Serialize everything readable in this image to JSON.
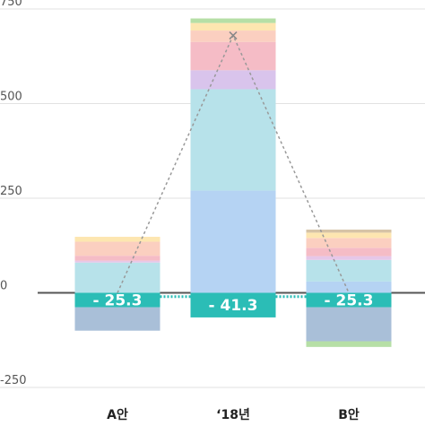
{
  "chart_data": {
    "type": "bar",
    "stacked": true,
    "categories": [
      "A안",
      "‘18년",
      "B안"
    ],
    "ylim": [
      -250,
      750
    ],
    "yticks": [
      750,
      500,
      250,
      0,
      -250
    ],
    "grid": true,
    "legend": "none",
    "highlight_color": "#2bbdb6",
    "line_color": "#999999",
    "bars": [
      {
        "category": "A안",
        "positive": [
          {
            "value": 80,
            "color": "#b7e2ea"
          },
          {
            "value": 5,
            "color": "#e6c7e8"
          },
          {
            "value": 13,
            "color": "#f5bcc6"
          },
          {
            "value": 37,
            "color": "#fbcfc0"
          },
          {
            "value": 13,
            "color": "#fde6b0"
          }
        ],
        "negative": [
          {
            "value": -38,
            "color": "#2bbdb6"
          },
          {
            "value": -62,
            "color": "#a9bfd8"
          }
        ],
        "highlight_value": -25.3,
        "highlight_label": "- 25.3"
      },
      {
        "category": "‘18년",
        "positive": [
          {
            "value": 270,
            "color": "#b5d3f3"
          },
          {
            "value": 268,
            "color": "#b7e2ea"
          },
          {
            "value": 50,
            "color": "#d9c4ec"
          },
          {
            "value": 75,
            "color": "#f5bcc6"
          },
          {
            "value": 30,
            "color": "#fbcfc0"
          },
          {
            "value": 20,
            "color": "#fde6b0"
          },
          {
            "value": 12,
            "color": "#b6dfa6"
          }
        ],
        "negative": [
          {
            "value": -65,
            "color": "#2bbdb6"
          }
        ],
        "highlight_value": -41.3,
        "highlight_label": "- 41.3"
      },
      {
        "category": "B안",
        "positive": [
          {
            "value": 30,
            "color": "#b5d3f3"
          },
          {
            "value": 57,
            "color": "#b7e2ea"
          },
          {
            "value": 10,
            "color": "#e6c7e8"
          },
          {
            "value": 22,
            "color": "#f5bcc6"
          },
          {
            "value": 26,
            "color": "#fbcfc0"
          },
          {
            "value": 14,
            "color": "#fde6b0"
          },
          {
            "value": 8,
            "color": "#d6c3a6"
          }
        ],
        "negative": [
          {
            "value": -38,
            "color": "#2bbdb6"
          },
          {
            "value": -90,
            "color": "#a9bfd8"
          },
          {
            "value": -15,
            "color": "#b6dfa6"
          }
        ],
        "highlight_value": -25.3,
        "highlight_label": "- 25.3"
      }
    ],
    "trend_line": [
      0,
      680,
      0
    ]
  }
}
